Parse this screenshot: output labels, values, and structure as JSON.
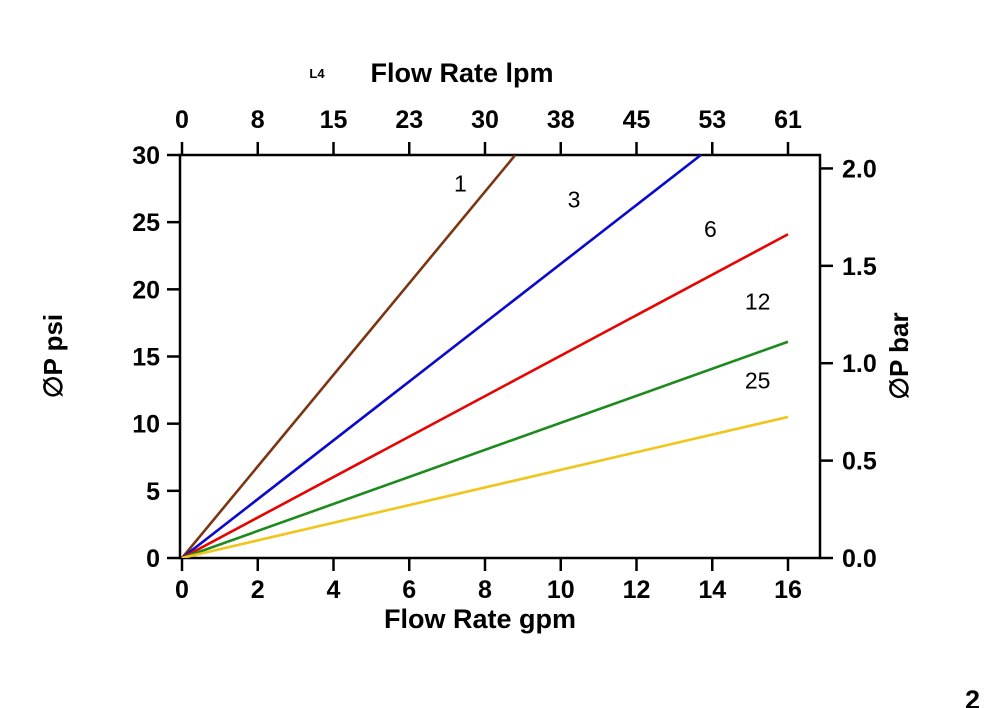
{
  "chart_data": {
    "type": "line",
    "title_top": "Flow Rate lpm",
    "corner_tag": "L4",
    "title_bottom": "Flow Rate gpm",
    "ylabel_left": "∅P psi",
    "ylabel_right": "∅P bar",
    "x_gpm": {
      "min": 0,
      "max": 16,
      "ticks": [
        0,
        2,
        4,
        6,
        8,
        10,
        12,
        14,
        16
      ]
    },
    "x_lpm_ticks": [
      "0",
      "8",
      "15",
      "23",
      "30",
      "38",
      "45",
      "53",
      "61"
    ],
    "y_psi": {
      "min": 0,
      "max": 30,
      "ticks": [
        0,
        5,
        10,
        15,
        20,
        25,
        30
      ]
    },
    "y_bar": {
      "ticks": [
        "0.0",
        "0.5",
        "1.0",
        "1.5",
        "2.0"
      ],
      "psi_per_bar": 14.5
    },
    "series": [
      {
        "label": "1",
        "color": "#7c3513",
        "points": [
          [
            0,
            0
          ],
          [
            8.8,
            30
          ]
        ],
        "label_at": [
          7.35,
          27.3
        ]
      },
      {
        "label": "3",
        "color": "#0a0acd",
        "points": [
          [
            0,
            0
          ],
          [
            13.7,
            30
          ]
        ],
        "label_at": [
          10.35,
          26.1
        ]
      },
      {
        "label": "6",
        "color": "#e60400",
        "points": [
          [
            0,
            0
          ],
          [
            16,
            24.1
          ]
        ],
        "label_at": [
          13.95,
          23.9
        ]
      },
      {
        "label": "12",
        "color": "#1d8a1d",
        "points": [
          [
            0,
            0
          ],
          [
            16,
            16.1
          ]
        ],
        "label_at": [
          15.2,
          18.5
        ]
      },
      {
        "label": "25",
        "color": "#f0c51c",
        "points": [
          [
            0,
            0
          ],
          [
            16,
            10.5
          ]
        ],
        "label_at": [
          15.2,
          12.6
        ]
      }
    ],
    "axis_color": "#000000",
    "page_number": "2"
  }
}
